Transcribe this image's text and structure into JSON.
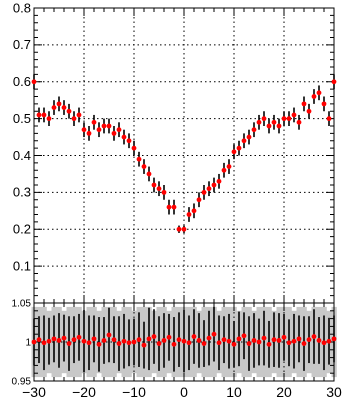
{
  "chart_data": [
    {
      "type": "scatter",
      "panel": "upper",
      "xlim": [
        -30,
        30
      ],
      "ylim": [
        0,
        0.8
      ],
      "y_ticks": [
        "0.1",
        "0.2",
        "0.3",
        "0.4",
        "0.5",
        "0.6",
        "0.7",
        "0.8"
      ],
      "grid": "dotted",
      "marker_color": "#ff0000",
      "errorbar_color": "#000000",
      "x": [
        -30,
        -29,
        -28,
        -27,
        -26,
        -25,
        -24,
        -23,
        -22,
        -21,
        -20,
        -19,
        -18,
        -17,
        -16,
        -15,
        -14,
        -13,
        -12,
        -11,
        -10,
        -9,
        -8,
        -7,
        -6,
        -5,
        -4,
        -3,
        -2,
        -1,
        0,
        1,
        2,
        3,
        4,
        5,
        6,
        7,
        8,
        9,
        10,
        11,
        12,
        13,
        14,
        15,
        16,
        17,
        18,
        19,
        20,
        21,
        22,
        23,
        24,
        25,
        26,
        27,
        28,
        29,
        30
      ],
      "y": [
        0.6,
        0.51,
        0.51,
        0.5,
        0.53,
        0.54,
        0.53,
        0.52,
        0.5,
        0.51,
        0.47,
        0.46,
        0.49,
        0.47,
        0.48,
        0.48,
        0.46,
        0.47,
        0.45,
        0.44,
        0.42,
        0.39,
        0.37,
        0.35,
        0.32,
        0.31,
        0.3,
        0.26,
        0.26,
        0.2,
        0.2,
        0.24,
        0.25,
        0.28,
        0.3,
        0.31,
        0.32,
        0.33,
        0.36,
        0.37,
        0.41,
        0.42,
        0.44,
        0.45,
        0.47,
        0.49,
        0.5,
        0.48,
        0.49,
        0.48,
        0.5,
        0.5,
        0.51,
        0.49,
        0.54,
        0.52,
        0.56,
        0.57,
        0.54,
        0.5,
        0.6
      ],
      "yerr": [
        0.02,
        0.02,
        0.02,
        0.02,
        0.02,
        0.02,
        0.02,
        0.02,
        0.02,
        0.02,
        0.02,
        0.02,
        0.02,
        0.02,
        0.02,
        0.02,
        0.02,
        0.02,
        0.02,
        0.02,
        0.02,
        0.02,
        0.02,
        0.02,
        0.02,
        0.02,
        0.02,
        0.02,
        0.02,
        0.01,
        0.01,
        0.02,
        0.02,
        0.02,
        0.02,
        0.02,
        0.02,
        0.02,
        0.02,
        0.02,
        0.02,
        0.02,
        0.02,
        0.02,
        0.02,
        0.02,
        0.02,
        0.02,
        0.02,
        0.02,
        0.02,
        0.02,
        0.02,
        0.02,
        0.02,
        0.02,
        0.02,
        0.02,
        0.02,
        0.02,
        0.02
      ]
    },
    {
      "type": "scatter",
      "panel": "ratio",
      "xlim": [
        -30,
        30
      ],
      "ylim": [
        0.95,
        1.05
      ],
      "x_ticks": [
        "−30",
        "−20",
        "−10",
        "0",
        "10",
        "20",
        "30"
      ],
      "y_ticks": [
        "0.95",
        "1",
        "1.05"
      ],
      "grid": "dotted",
      "band_color": "#c8c8c8",
      "marker_color": "#ff0000",
      "errorbar_color": "#000000",
      "x": [
        -30,
        -29,
        -28,
        -27,
        -26,
        -25,
        -24,
        -23,
        -22,
        -21,
        -20,
        -19,
        -18,
        -17,
        -16,
        -15,
        -14,
        -13,
        -12,
        -11,
        -10,
        -9,
        -8,
        -7,
        -6,
        -5,
        -4,
        -3,
        -2,
        -1,
        0,
        1,
        2,
        3,
        4,
        5,
        6,
        7,
        8,
        9,
        10,
        11,
        12,
        13,
        14,
        15,
        16,
        17,
        18,
        19,
        20,
        21,
        22,
        23,
        24,
        25,
        26,
        27,
        28,
        29,
        30
      ],
      "y": [
        1.0,
        1.003,
        0.999,
        1.001,
        1.004,
        1.002,
        1.005,
        0.998,
        1.003,
        1.006,
        1.001,
        0.999,
        1.004,
        0.997,
        1.002,
        1.009,
        1.003,
        0.998,
        1.001,
        0.999,
        1.0,
        1.003,
        0.996,
        1.004,
        1.007,
        0.998,
        1.002,
        1.006,
        0.997,
        1.003,
        1.001,
        0.999,
        1.007,
        1.002,
        0.998,
        1.005,
        1.01,
        0.999,
        1.003,
        1.001,
        0.997,
        1.004,
        1.008,
        0.998,
        1.002,
        1.0,
        1.005,
        0.997,
        1.003,
        1.002,
        1.006,
        0.999,
        1.001,
        1.004,
        0.998,
        1.003,
        1.007,
        1.002,
        0.999,
        1.001,
        1.004
      ],
      "yerr": [
        0.03,
        0.03,
        0.035,
        0.03,
        0.03,
        0.035,
        0.03,
        0.035,
        0.03,
        0.03,
        0.04,
        0.035,
        0.03,
        0.035,
        0.03,
        0.035,
        0.03,
        0.035,
        0.035,
        0.03,
        0.03,
        0.035,
        0.03,
        0.04,
        0.035,
        0.035,
        0.035,
        0.03,
        0.035,
        0.035,
        0.04,
        0.035,
        0.035,
        0.035,
        0.03,
        0.035,
        0.035,
        0.035,
        0.03,
        0.035,
        0.03,
        0.035,
        0.03,
        0.035,
        0.035,
        0.03,
        0.035,
        0.03,
        0.035,
        0.035,
        0.03,
        0.03,
        0.035,
        0.03,
        0.035,
        0.03,
        0.035,
        0.03,
        0.035,
        0.03,
        0.03
      ],
      "band": [
        0.045,
        0.045,
        0.045,
        0.04,
        0.045,
        0.045,
        0.04,
        0.045,
        0.045,
        0.045,
        0.04,
        0.045,
        0.045,
        0.04,
        0.045,
        0.045,
        0.045,
        0.04,
        0.045,
        0.045,
        0.04,
        0.045,
        0.045,
        0.045,
        0.04,
        0.045,
        0.045,
        0.04,
        0.045,
        0.045,
        0.045,
        0.045,
        0.045,
        0.04,
        0.045,
        0.045,
        0.045,
        0.04,
        0.045,
        0.045,
        0.045,
        0.04,
        0.045,
        0.045,
        0.04,
        0.045,
        0.045,
        0.045,
        0.04,
        0.045,
        0.045,
        0.045,
        0.04,
        0.045,
        0.045,
        0.04,
        0.045,
        0.045,
        0.045,
        0.04,
        0.045
      ]
    }
  ]
}
